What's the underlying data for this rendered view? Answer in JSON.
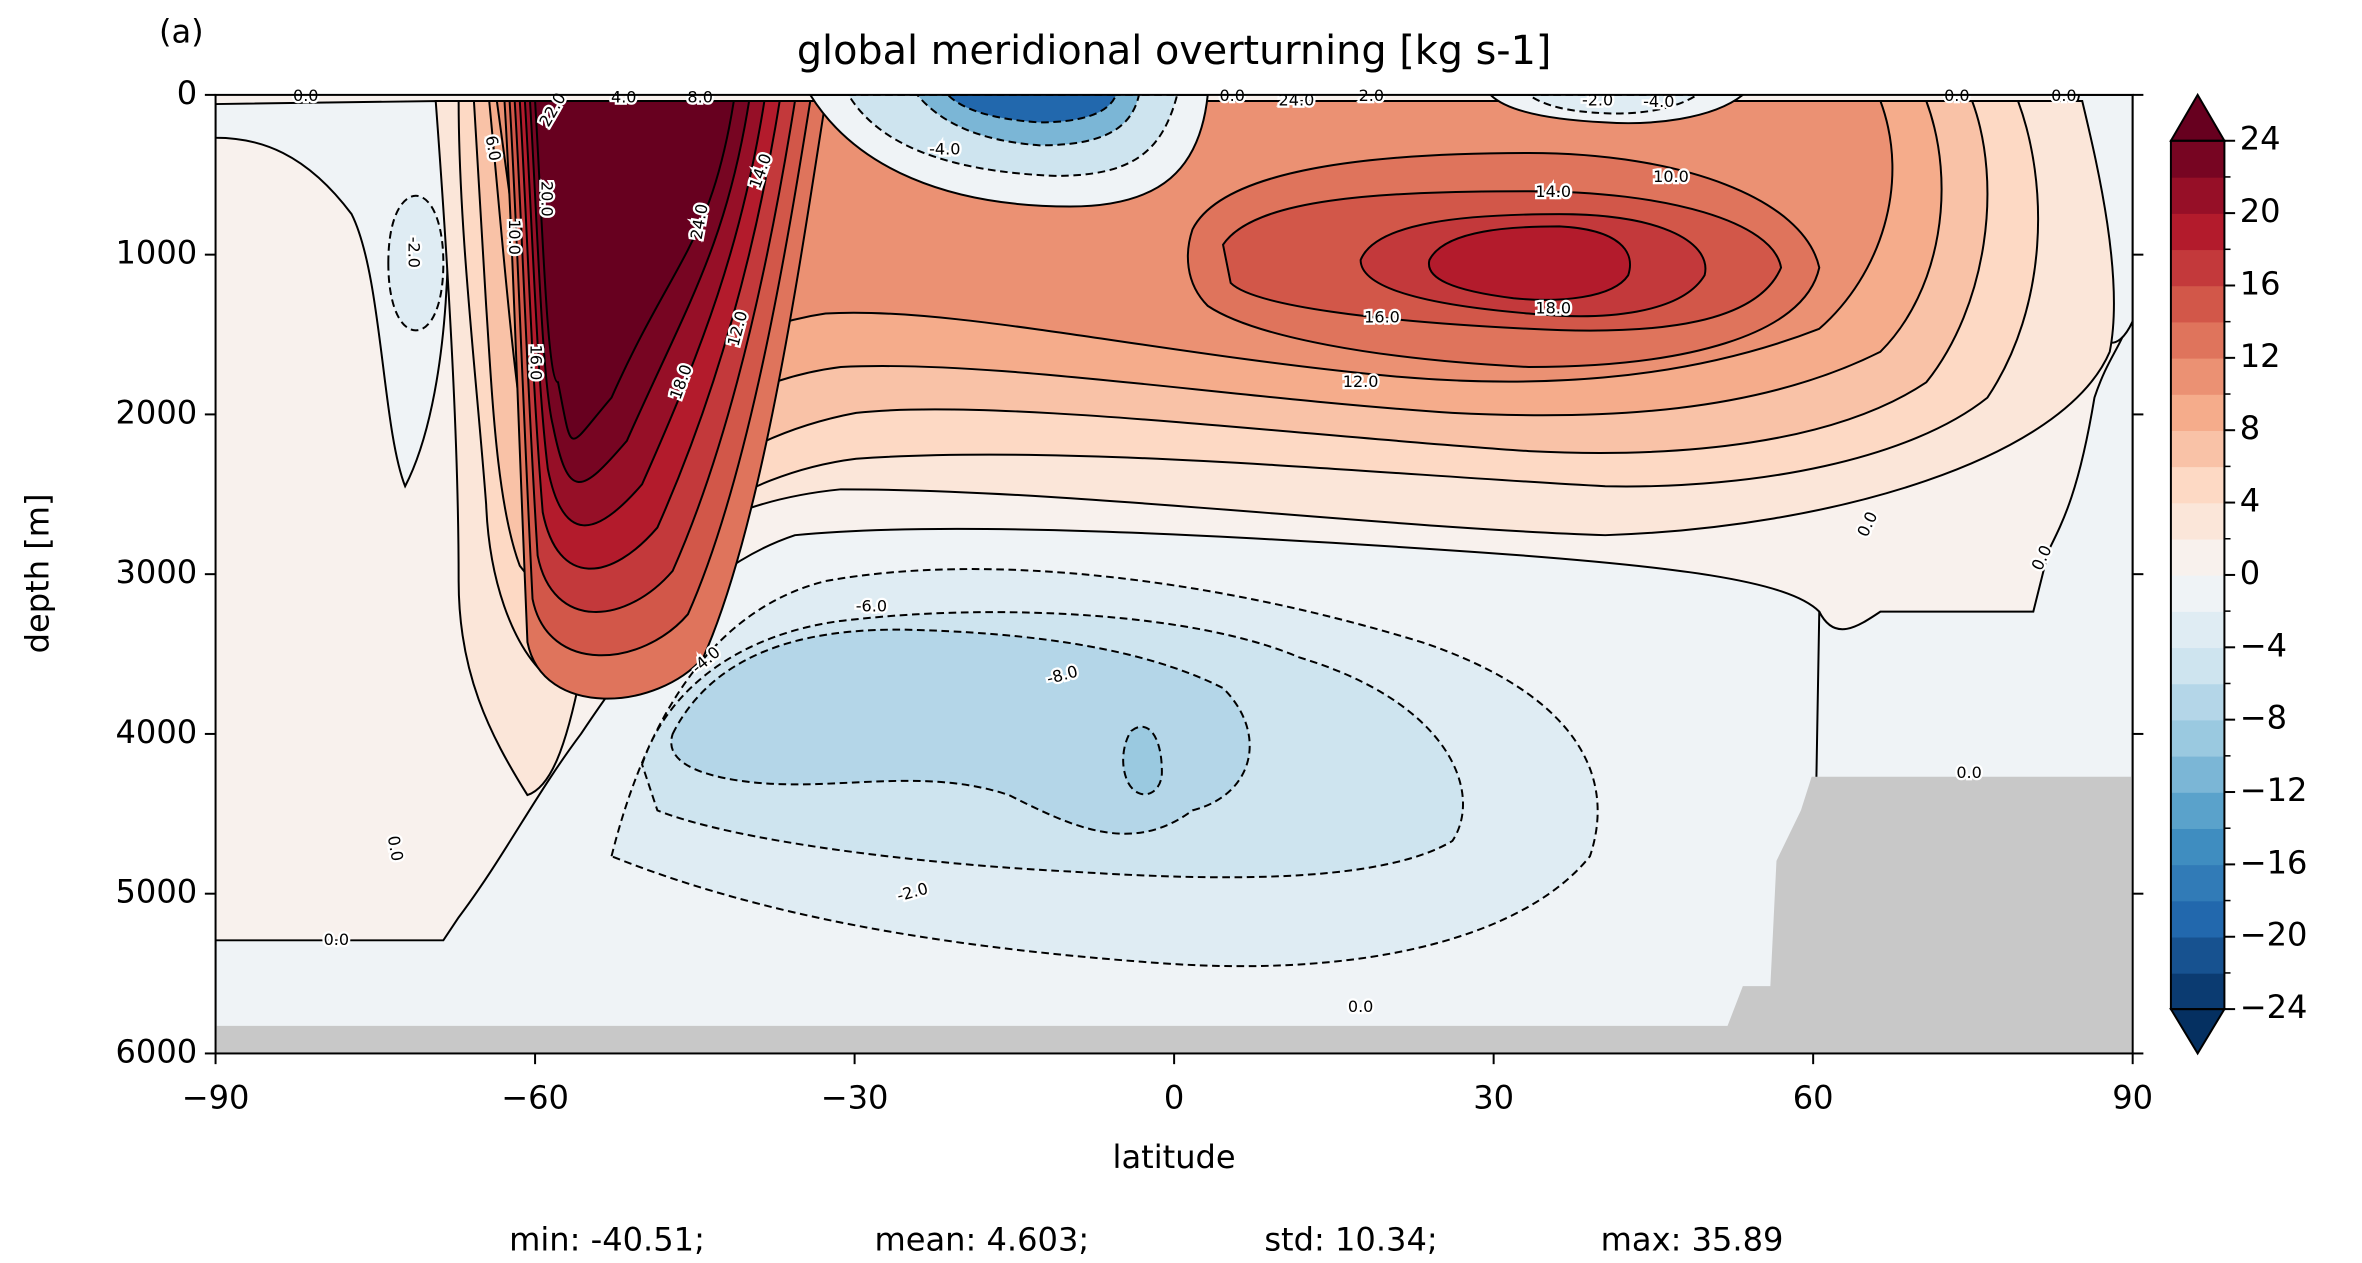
{
  "chart_data": {
    "type": "contour",
    "panel_label": "(a)",
    "title": "global meridional overturning [kg s-1]",
    "x_label": "latitude",
    "y_label": "depth [m]",
    "xlim": [
      -90,
      90
    ],
    "xticks": [
      {
        "value": -90,
        "label": "−90"
      },
      {
        "value": -60,
        "label": "−60"
      },
      {
        "value": -30,
        "label": "−30"
      },
      0,
      30,
      60,
      90
    ],
    "ylim": [
      0,
      6000
    ],
    "yticks": [
      0,
      1000,
      2000,
      3000,
      4000,
      5000,
      6000
    ],
    "y_inverted": true,
    "levels": [
      -24,
      -22,
      -20,
      -18,
      -16,
      -14,
      -12,
      -10,
      -8,
      -6,
      -4,
      -2,
      0,
      2,
      4,
      6,
      8,
      10,
      12,
      14,
      16,
      18,
      20,
      22,
      24
    ],
    "extend": "both",
    "cmap": [
      "#053061",
      "#2166ac",
      "#4393c3",
      "#92c5de",
      "#d1e5f0",
      "#f7f7f7",
      "#fddbc7",
      "#f4a582",
      "#d6604d",
      "#b2182b",
      "#67001f"
    ],
    "land_color": "#c8c8c8",
    "cbar_ticks": [
      {
        "value": -24,
        "label": "−24"
      },
      {
        "value": -20,
        "label": "−20"
      },
      {
        "value": -16,
        "label": "−16"
      },
      {
        "value": -12,
        "label": "−12"
      },
      {
        "value": -8,
        "label": "−8"
      },
      {
        "value": -4,
        "label": "−4"
      },
      0,
      4,
      8,
      12,
      16,
      20,
      24
    ],
    "contour_labels": [
      {
        "value": 0,
        "label": "0.0"
      },
      {
        "value": 22,
        "label": "22.0"
      },
      {
        "value": 4,
        "label": "4.0"
      },
      {
        "value": 8,
        "label": "8.0"
      },
      {
        "value": 6,
        "label": "6.0"
      },
      {
        "value": 20,
        "label": "20.0"
      },
      {
        "value": 10,
        "label": "10.0"
      },
      {
        "value": 16,
        "label": "16.0"
      },
      {
        "value": 24,
        "label": "24.0"
      },
      {
        "value": 14,
        "label": "14.0"
      },
      {
        "value": 12,
        "label": "12.0"
      },
      {
        "value": 18,
        "label": "18.0"
      },
      {
        "value": -2,
        "label": "-2.0"
      },
      {
        "value": -4,
        "label": "-4.0"
      },
      {
        "value": 24,
        "label": "24.0"
      },
      {
        "value": 2,
        "label": "2.0"
      },
      {
        "value": 0,
        "label": "0.0"
      },
      {
        "value": -2,
        "label": "-2.0"
      },
      {
        "value": -4,
        "label": "-4.0"
      },
      {
        "value": 0,
        "label": "0.0"
      },
      {
        "value": 0,
        "label": "0.0"
      },
      {
        "value": 14,
        "label": "14.0"
      },
      {
        "value": 10,
        "label": "10.0"
      },
      {
        "value": 16,
        "label": "16.0"
      },
      {
        "value": 18,
        "label": "18.0"
      },
      {
        "value": 12,
        "label": "12.0"
      },
      {
        "value": 0,
        "label": "0.0"
      },
      {
        "value": 0,
        "label": "0.0"
      },
      {
        "value": -6,
        "label": "-6.0"
      },
      {
        "value": -8,
        "label": "-8.0"
      },
      {
        "value": -4,
        "label": "-4.0"
      },
      {
        "value": 0,
        "label": "0.0"
      },
      {
        "value": 0,
        "label": "0.0"
      },
      {
        "value": 0,
        "label": "0.0"
      },
      {
        "value": -2,
        "label": "-2.0"
      },
      {
        "value": 0,
        "label": "0.0"
      }
    ],
    "stats": [
      "min: -40.51;",
      "mean: 4.603;",
      "std: 10.34;",
      "max: 35.89"
    ]
  }
}
